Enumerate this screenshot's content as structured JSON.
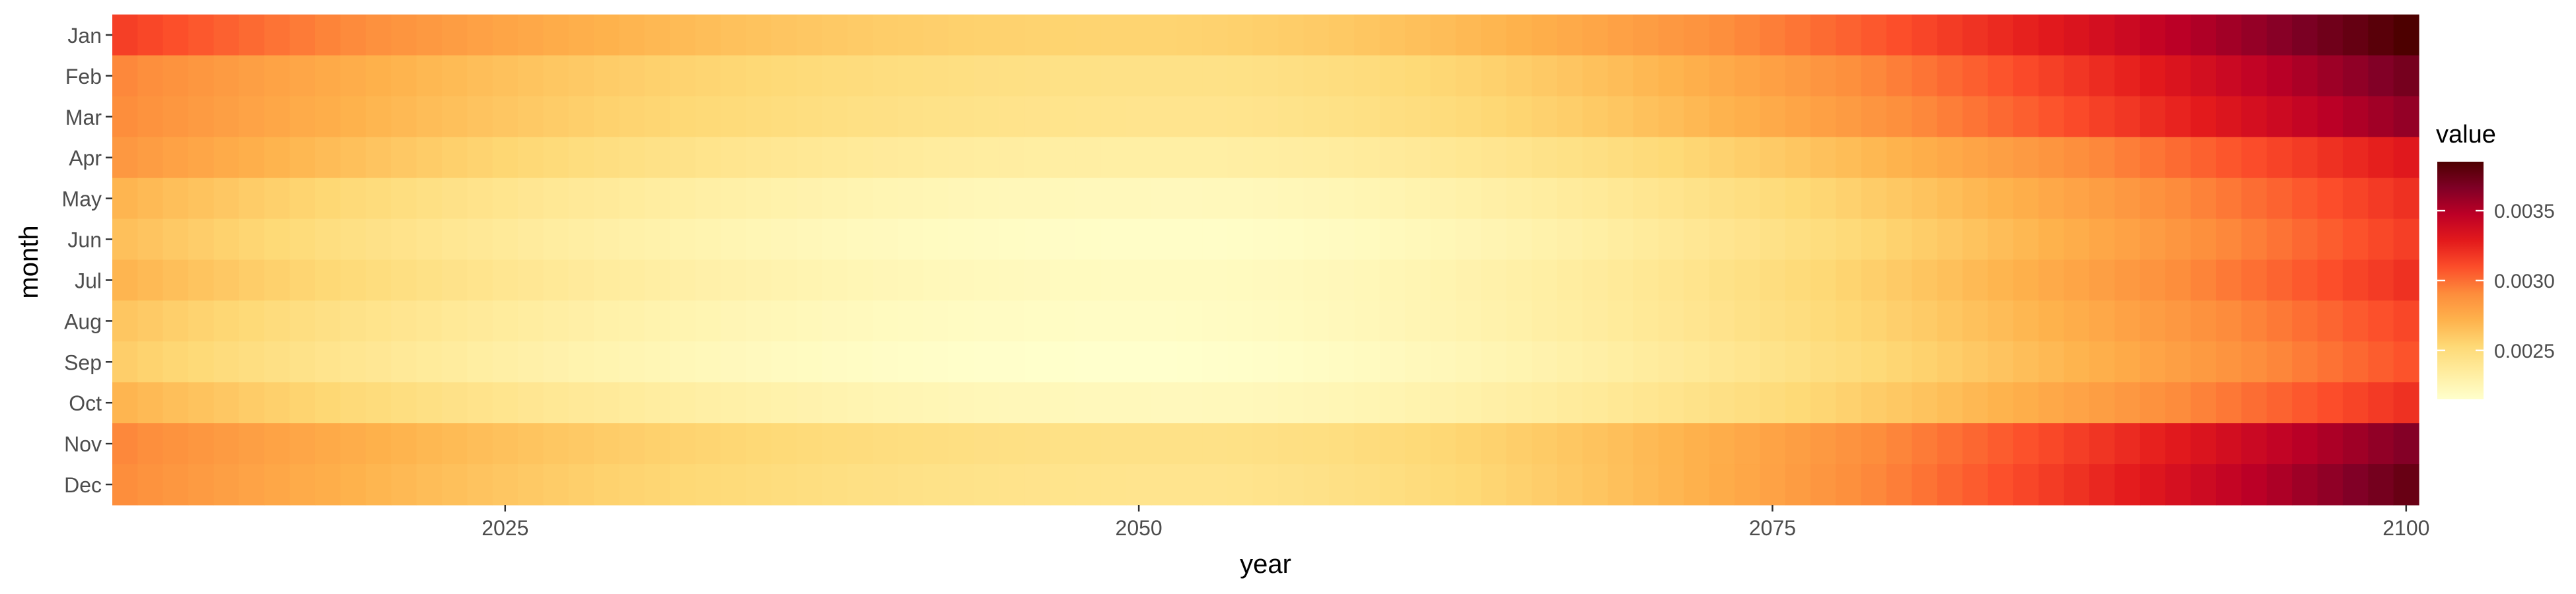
{
  "chart_data": {
    "type": "heatmap",
    "xlabel": "year",
    "ylabel": "month",
    "legend_title": "value",
    "legend_position": "right",
    "x_ticks": [
      2025,
      2050,
      2075,
      2100
    ],
    "x_range": [
      2010,
      2100
    ],
    "months": [
      "Jan",
      "Feb",
      "Mar",
      "Apr",
      "May",
      "Jun",
      "Jul",
      "Aug",
      "Sep",
      "Oct",
      "Nov",
      "Dec"
    ],
    "years_start": 2010,
    "years_end": 2100,
    "value_range": [
      0.00215,
      0.00385
    ],
    "legend_ticks": [
      {
        "value": 0.0025,
        "label": "0.0025"
      },
      {
        "value": 0.003,
        "label": "0.0030"
      },
      {
        "value": 0.0035,
        "label": "0.0035"
      }
    ],
    "month_profile": [
      {
        "month": "Jan",
        "y2010": 0.00315,
        "min": 0.00255,
        "min_year": 2050,
        "y2100": 0.00385
      },
      {
        "month": "Feb",
        "y2010": 0.00292,
        "min": 0.00245,
        "min_year": 2052,
        "y2100": 0.0037
      },
      {
        "month": "Mar",
        "y2010": 0.0029,
        "min": 0.00242,
        "min_year": 2052,
        "y2100": 0.0036
      },
      {
        "month": "Apr",
        "y2010": 0.00285,
        "min": 0.00232,
        "min_year": 2052,
        "y2100": 0.0033
      },
      {
        "month": "May",
        "y2010": 0.0027,
        "min": 0.00222,
        "min_year": 2052,
        "y2100": 0.0032
      },
      {
        "month": "Jun",
        "y2010": 0.00265,
        "min": 0.00217,
        "min_year": 2052,
        "y2100": 0.00315
      },
      {
        "month": "Jul",
        "y2010": 0.0027,
        "min": 0.0022,
        "min_year": 2052,
        "y2100": 0.0032
      },
      {
        "month": "Aug",
        "y2010": 0.00262,
        "min": 0.00218,
        "min_year": 2050,
        "y2100": 0.00312
      },
      {
        "month": "Sep",
        "y2010": 0.00258,
        "min": 0.00215,
        "min_year": 2050,
        "y2100": 0.00308
      },
      {
        "month": "Oct",
        "y2010": 0.0027,
        "min": 0.00222,
        "min_year": 2052,
        "y2100": 0.0032
      },
      {
        "month": "Nov",
        "y2010": 0.00292,
        "min": 0.00245,
        "min_year": 2052,
        "y2100": 0.00365
      },
      {
        "month": "Dec",
        "y2010": 0.0029,
        "min": 0.00242,
        "min_year": 2052,
        "y2100": 0.00375
      }
    ],
    "colormap": [
      "#FFFFCC",
      "#FFEDA0",
      "#FED976",
      "#FEB24C",
      "#FD8D3C",
      "#FC4E2A",
      "#E31A1C",
      "#BD0026",
      "#800026",
      "#4D0000"
    ]
  }
}
